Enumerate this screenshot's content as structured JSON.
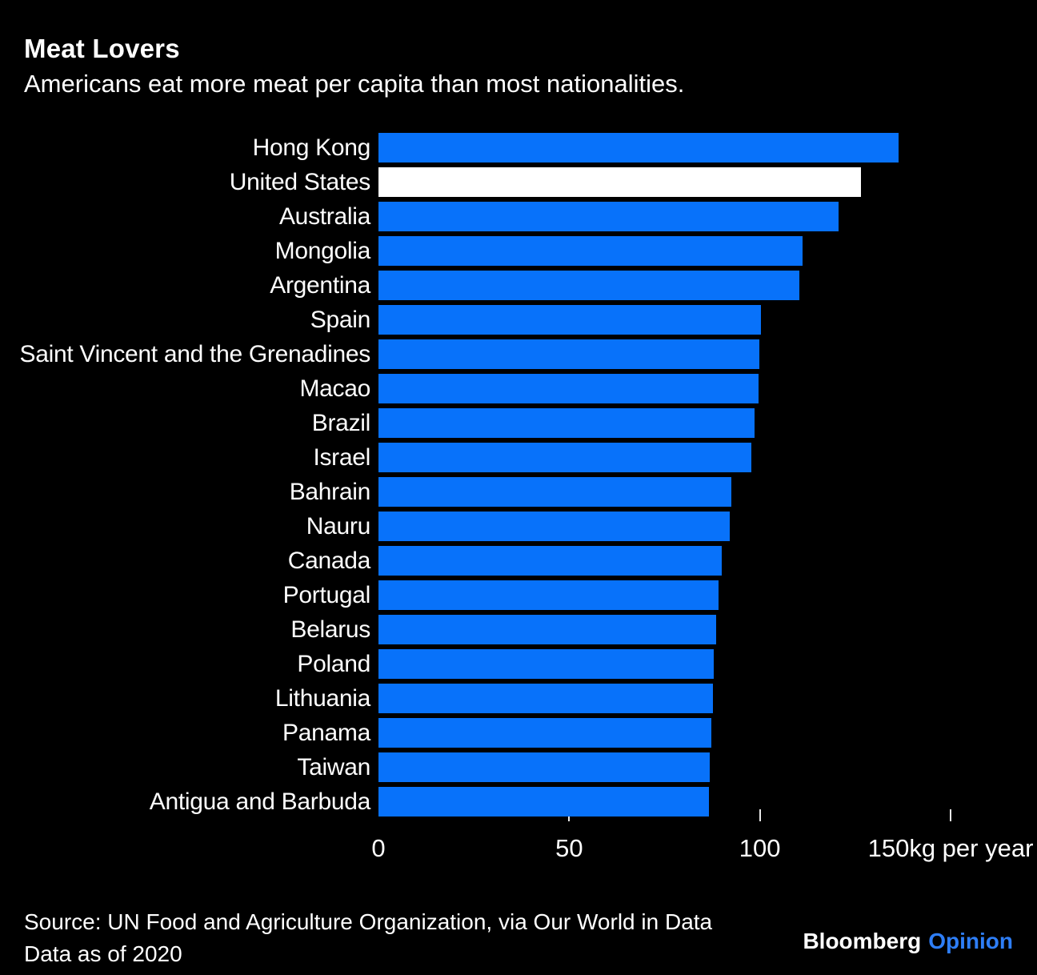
{
  "header": {
    "title": "Meat Lovers",
    "subtitle": "Americans eat more meat per capita than most nationalities."
  },
  "chart_data": {
    "type": "bar",
    "orientation": "horizontal",
    "title": "Meat Lovers",
    "subtitle": "Americans eat more meat per capita than most nationalities.",
    "xlabel": "kg per year",
    "xlim": [
      0,
      150
    ],
    "x_ticks": [
      0,
      50,
      100,
      150
    ],
    "x_tick_labels": [
      "0",
      "50",
      "100",
      "150kg per year"
    ],
    "tick_marks": [
      50,
      100,
      150
    ],
    "grid": false,
    "categories": [
      "Hong Kong",
      "United States",
      "Australia",
      "Mongolia",
      "Argentina",
      "Spain",
      "Saint Vincent and the Grenadines",
      "Macao",
      "Brazil",
      "Israel",
      "Bahrain",
      "Nauru",
      "Canada",
      "Portugal",
      "Belarus",
      "Poland",
      "Lithuania",
      "Panama",
      "Taiwan",
      "Antigua and Barbuda"
    ],
    "values": [
      136.3,
      126.5,
      120.6,
      111.1,
      110.4,
      100.3,
      99.9,
      99.7,
      98.7,
      97.8,
      92.6,
      92.0,
      90.1,
      89.2,
      88.5,
      87.8,
      87.6,
      87.3,
      86.9,
      86.6
    ],
    "highlight_category": "United States",
    "bar_color": "#0872fa",
    "highlight_color": "#ffffff"
  },
  "footer": {
    "source_line1": "Source: UN Food and Agriculture Organization, via Our World in Data",
    "source_line2": "Data as of 2020",
    "brand": "Bloomberg",
    "brand_edition": "Opinion",
    "brand_edition_color": "#2e7ef7"
  }
}
